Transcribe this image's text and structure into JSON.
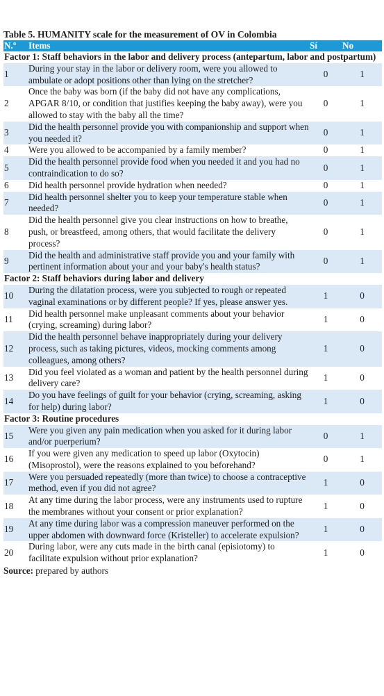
{
  "title": "Table 5. HUMANITY scale for the measurement of OV in Colombia",
  "header": [
    "N.º",
    "Items",
    "Sí",
    "No"
  ],
  "sections": [
    {
      "factor": "Factor 1: Staff behaviors in the labor and delivery process (antepartum, labor and postpartum)",
      "rows": [
        [
          "1",
          "During your stay in the labor or delivery room, were you allowed to ambulate or adopt positions other than lying on the stretcher?",
          "0",
          "1"
        ],
        [
          "2",
          "Once the baby was born (if the baby did not have any complications, APGAR 8/10, or condition that justifies keeping the baby away), were you allowed to stay with the baby all the time?",
          "0",
          "1"
        ],
        [
          "3",
          "Did the health personnel provide you with companionship and support when you needed it?",
          "0",
          "1"
        ],
        [
          "4",
          "Were you allowed to be accompanied by a family member?",
          "0",
          "1"
        ],
        [
          "5",
          "Did the health personnel provide food when you needed it and you had no contraindication to do so?",
          "0",
          "1"
        ],
        [
          "6",
          "Did health personnel provide hydration when needed?",
          "0",
          "1"
        ],
        [
          "7",
          "Did health personnel shelter you to keep your temperature stable when needed?",
          "0",
          "1"
        ],
        [
          "8",
          "Did the health personnel give you clear instructions on how to breathe, push, or breastfeed, among others, that would facilitate the delivery process?",
          "0",
          "1"
        ],
        [
          "9",
          "Did the health and administrative staff provide you and your family with pertinent information about your and your baby's health status?",
          "0",
          "1"
        ]
      ]
    },
    {
      "factor": "Factor 2: Staff behaviors during labor and delivery",
      "rows": [
        [
          "10",
          "During the dilatation process, were you subjected to rough or repeated vaginal examinations or by different people? If yes, please answer yes.",
          "1",
          "0"
        ],
        [
          "11",
          "Did health personnel make unpleasant comments about your behavior (crying, screaming) during labor?",
          "1",
          "0"
        ],
        [
          "12",
          "Did the health personnel behave inappropriately during your delivery process, such as taking pictures, videos, mocking comments among colleagues, among others?",
          "1",
          "0"
        ],
        [
          "13",
          "Did you feel violated as a woman and patient by the health personnel during delivery care?",
          "1",
          "0"
        ],
        [
          "14",
          "Do you have feelings of guilt for your behavior (crying, screaming, asking for help) during labor?",
          "1",
          "0"
        ]
      ]
    },
    {
      "factor": "Factor 3: Routine procedures",
      "rows": [
        [
          "15",
          "Were you given any pain medication when you asked for it during labor and/or puerperium?",
          "0",
          "1"
        ],
        [
          "16",
          "If you were given any medication to speed up labor (Oxytocin) (Misoprostol), were the reasons explained to you beforehand?",
          "0",
          "1"
        ],
        [
          "17",
          "Were you persuaded repeatedly (more than twice) to choose a contraceptive method, even if you did not agree?",
          "1",
          "0"
        ],
        [
          "18",
          "At any time during the labor process, were any instruments used to rupture the membranes without your consent or prior explanation?",
          "1",
          "0"
        ],
        [
          "19",
          "At any time during labor was a compression maneuver performed on the upper abdomen with downward force (Kristeller) to accelerate expulsion?",
          "1",
          "0"
        ],
        [
          "20",
          "During labor, were any cuts made in the birth canal (episiotomy) to facilitate expulsion without prior explanation?",
          "1",
          "0"
        ]
      ]
    }
  ],
  "source": {
    "label": "Source:",
    "text": "prepared by authors"
  }
}
